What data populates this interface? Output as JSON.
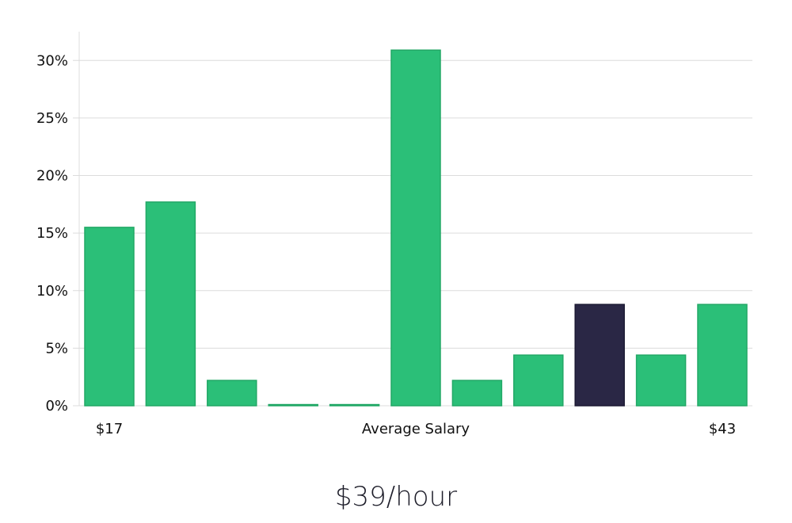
{
  "chart_data": {
    "type": "bar",
    "values": [
      15.5,
      17.7,
      2.2,
      0.1,
      0.1,
      30.9,
      2.2,
      4.4,
      8.8,
      4.4,
      8.8
    ],
    "highlight_index": 8,
    "ylim": [
      0,
      32.5
    ],
    "yticks": [
      0,
      5,
      10,
      15,
      20,
      25,
      30
    ],
    "ytick_format": "{v}%",
    "grid": true,
    "x_labels": {
      "left": "$17",
      "center": "Average Salary",
      "right": "$43"
    },
    "colors": {
      "bar": "#2bbf78",
      "bar_edge": "#22a866",
      "highlight": "#2a2745",
      "grid": "#dcdcdc"
    }
  },
  "caption": "$39/hour"
}
